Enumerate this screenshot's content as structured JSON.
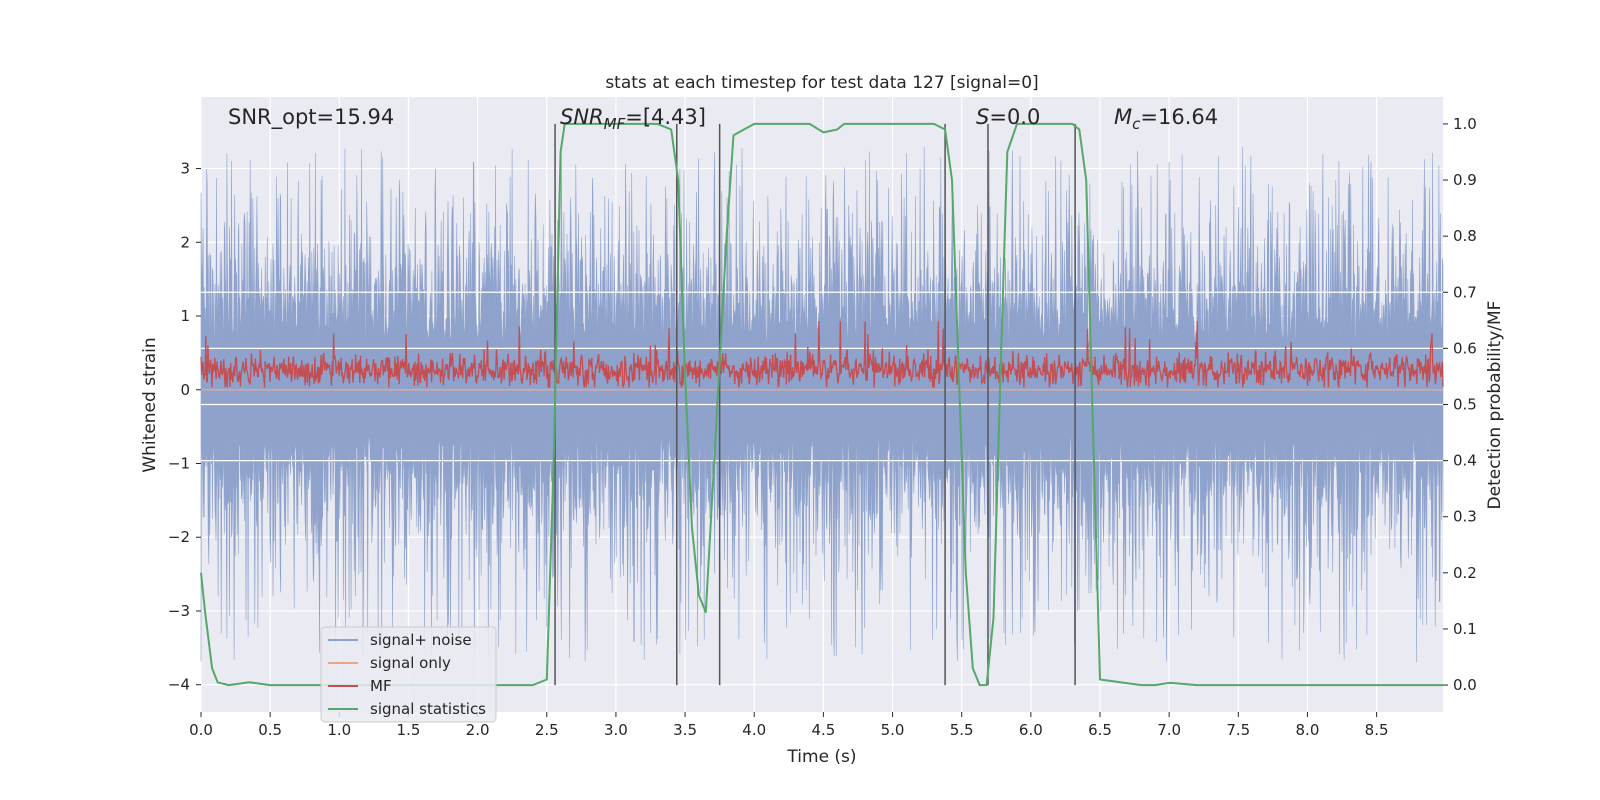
{
  "chart_data": {
    "type": "line",
    "title": "stats at each timestep for test data 127 [signal=0]",
    "xlabel": "Time (s)",
    "ylabel": "Whitened strain",
    "y2label": "Detection probability/MF",
    "xlim": [
      0.0,
      8.98
    ],
    "ylim": [
      -4.37,
      3.97
    ],
    "y2lim": [
      -0.048,
      1.048
    ],
    "x_ticks": [
      0.0,
      0.5,
      1.0,
      1.5,
      2.0,
      2.5,
      3.0,
      3.5,
      4.0,
      4.5,
      5.0,
      5.5,
      6.0,
      6.5,
      7.0,
      7.5,
      8.0,
      8.5
    ],
    "x_tick_labels": [
      "0.0",
      "0.5",
      "1.0",
      "1.5",
      "2.0",
      "2.5",
      "3.0",
      "3.5",
      "4.0",
      "4.5",
      "5.0",
      "5.5",
      "6.0",
      "6.5",
      "7.0",
      "7.5",
      "8.0",
      "8.5"
    ],
    "y_ticks": [
      3,
      2,
      1,
      0,
      -1,
      -2,
      -3,
      -4
    ],
    "y_tick_labels": [
      "3",
      "2",
      "1",
      "0",
      "−1",
      "−2",
      "−3",
      "−4"
    ],
    "y2_ticks": [
      1.0,
      0.9,
      0.8,
      0.7,
      0.6,
      0.5,
      0.4,
      0.3,
      0.2,
      0.1,
      0.0
    ],
    "y2_tick_labels": [
      "1.0",
      "0.9",
      "0.8",
      "0.7",
      "0.6",
      "0.5",
      "0.4",
      "0.3",
      "0.2",
      "0.1",
      "0.0"
    ],
    "grid": true,
    "legend_position": "lower-left",
    "annotations": {
      "snr_opt": "SNR_opt=15.94",
      "snr_mf_main": "SNR",
      "snr_mf_sub": "MF",
      "snr_mf_value": "=[4.43]",
      "s_main": "S",
      "s_value": "=0.0",
      "mc_main": "M",
      "mc_sub": "c",
      "mc_value": "=16.64"
    },
    "vertical_markers_x": [
      2.56,
      3.44,
      3.75,
      5.38,
      5.69,
      6.32
    ],
    "vertical_marker_ylim": [
      0.0,
      1.0
    ],
    "series": [
      {
        "name": "signal+ noise",
        "color": "#8ea2cc",
        "axis": "left",
        "description_values": "noise ~ N(0,1)",
        "envelope": {
          "typical_max": 2.0,
          "extreme_max": 3.3,
          "typical_min": -2.0,
          "extreme_min": -3.7
        },
        "x_range": [
          0.0,
          8.98
        ]
      },
      {
        "name": "signal only",
        "color": "#e8a58a",
        "axis": "left",
        "x": [
          0.0,
          8.98
        ],
        "y": [
          0.0,
          0.0
        ]
      },
      {
        "name": "MF",
        "color": "#c44e52",
        "axis": "left",
        "baseline": 0.27,
        "spread": 0.2,
        "x_range": [
          0.0,
          8.98
        ]
      },
      {
        "name": "signal statistics",
        "color": "#55a868",
        "axis": "right",
        "x": [
          0.0,
          0.03,
          0.08,
          0.12,
          0.2,
          0.35,
          0.5,
          1.0,
          2.0,
          2.4,
          2.5,
          2.55,
          2.6,
          2.63,
          3.0,
          3.3,
          3.4,
          3.45,
          3.5,
          3.55,
          3.6,
          3.65,
          3.7,
          3.8,
          3.85,
          4.0,
          4.4,
          4.5,
          4.6,
          4.65,
          5.0,
          5.3,
          5.38,
          5.43,
          5.48,
          5.53,
          5.58,
          5.63,
          5.68,
          5.73,
          5.78,
          5.83,
          5.9,
          6.3,
          6.35,
          6.4,
          6.45,
          6.5,
          6.8,
          6.9,
          7.0,
          7.2,
          8.98
        ],
        "y": [
          0.2,
          0.13,
          0.03,
          0.005,
          0.0,
          0.005,
          0.0,
          0.0,
          0.0,
          0.0,
          0.01,
          0.4,
          0.95,
          1.0,
          1.0,
          1.0,
          0.99,
          0.9,
          0.55,
          0.28,
          0.16,
          0.13,
          0.35,
          0.8,
          0.98,
          1.0,
          1.0,
          0.985,
          0.99,
          1.0,
          1.0,
          1.0,
          0.99,
          0.9,
          0.55,
          0.2,
          0.03,
          0.0,
          0.0,
          0.12,
          0.55,
          0.95,
          1.0,
          1.0,
          0.99,
          0.9,
          0.45,
          0.01,
          0.0,
          0.0,
          0.004,
          0.0,
          0.0
        ]
      }
    ]
  }
}
